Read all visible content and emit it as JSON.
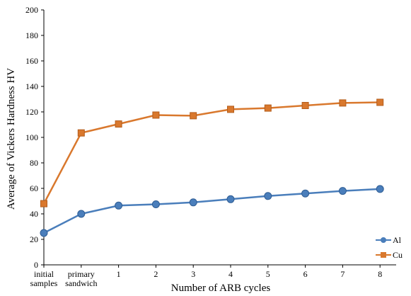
{
  "chart_data": {
    "type": "line",
    "title": "",
    "xlabel": "Number of ARB cycles",
    "ylabel": "Average of Vickers Hardness HV",
    "categories": [
      [
        "initial",
        "samples"
      ],
      [
        "primary",
        "sandwich"
      ],
      [
        "1"
      ],
      [
        "2"
      ],
      [
        "3"
      ],
      [
        "4"
      ],
      [
        "5"
      ],
      [
        "6"
      ],
      [
        "7"
      ],
      [
        "8"
      ]
    ],
    "ylim": [
      0,
      200
    ],
    "yticks": [
      0,
      20,
      40,
      60,
      80,
      100,
      120,
      140,
      160,
      180,
      200
    ],
    "grid": false,
    "legend_position": "bottom-right",
    "series": [
      {
        "name": "Al",
        "color": "#4a7ebb",
        "marker": "circle",
        "values": [
          25,
          40,
          46.5,
          47.5,
          49,
          51.5,
          54,
          56,
          58,
          59.5
        ]
      },
      {
        "name": "Cu",
        "color": "#d9782d",
        "marker": "square",
        "values": [
          48,
          103.5,
          110.5,
          117.5,
          117,
          122,
          123,
          125,
          127,
          127.5
        ]
      }
    ]
  }
}
